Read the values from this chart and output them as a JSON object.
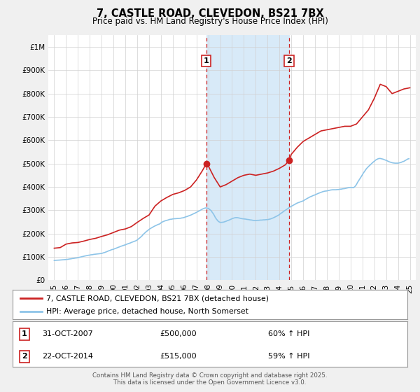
{
  "title": "7, CASTLE ROAD, CLEVEDON, BS21 7BX",
  "subtitle": "Price paid vs. HM Land Registry's House Price Index (HPI)",
  "hpi_color": "#8dc4e8",
  "price_color": "#cc2222",
  "background_color": "#f0f0f0",
  "plot_bg_color": "#ffffff",
  "highlight_bg_color": "#d8eaf8",
  "marker1_date": 2007.83,
  "marker2_date": 2014.81,
  "marker1_label": "31-OCT-2007",
  "marker2_label": "22-OCT-2014",
  "marker1_price": 500000,
  "marker2_price": 515000,
  "marker1_pct": "60% ↑ HPI",
  "marker2_pct": "59% ↑ HPI",
  "marker1_price_str": "£500,000",
  "marker2_price_str": "£515,000",
  "ylim": [
    0,
    1050000
  ],
  "xlim": [
    1994.5,
    2025.5
  ],
  "ylabel_ticks": [
    0,
    100000,
    200000,
    300000,
    400000,
    500000,
    600000,
    700000,
    800000,
    900000,
    1000000
  ],
  "ylabel_labels": [
    "£0",
    "£100K",
    "£200K",
    "£300K",
    "£400K",
    "£500K",
    "£600K",
    "£700K",
    "£800K",
    "£900K",
    "£1M"
  ],
  "xtick_labels": [
    "95",
    "96",
    "97",
    "98",
    "99",
    "00",
    "01",
    "02",
    "03",
    "04",
    "05",
    "06",
    "07",
    "08",
    "09",
    "10",
    "11",
    "12",
    "13",
    "14",
    "15",
    "16",
    "17",
    "18",
    "19",
    "20",
    "21",
    "22",
    "23",
    "24",
    "25"
  ],
  "xticks": [
    1995,
    1996,
    1997,
    1998,
    1999,
    2000,
    2001,
    2002,
    2003,
    2004,
    2005,
    2006,
    2007,
    2008,
    2009,
    2010,
    2011,
    2012,
    2013,
    2014,
    2015,
    2016,
    2017,
    2018,
    2019,
    2020,
    2021,
    2022,
    2023,
    2024,
    2025
  ],
  "legend_line1": "7, CASTLE ROAD, CLEVEDON, BS21 7BX (detached house)",
  "legend_line2": "HPI: Average price, detached house, North Somerset",
  "footer": "Contains HM Land Registry data © Crown copyright and database right 2025.\nThis data is licensed under the Open Government Licence v3.0.",
  "hpi_data": [
    [
      1995.0,
      85000
    ],
    [
      1995.08,
      85500
    ],
    [
      1995.17,
      85800
    ],
    [
      1995.25,
      86000
    ],
    [
      1995.33,
      86200
    ],
    [
      1995.42,
      86500
    ],
    [
      1995.5,
      87000
    ],
    [
      1995.58,
      87200
    ],
    [
      1995.67,
      87500
    ],
    [
      1995.75,
      88000
    ],
    [
      1995.83,
      88300
    ],
    [
      1995.92,
      88600
    ],
    [
      1996.0,
      89000
    ],
    [
      1996.08,
      89500
    ],
    [
      1996.17,
      90000
    ],
    [
      1996.25,
      91000
    ],
    [
      1996.33,
      91500
    ],
    [
      1996.42,
      92000
    ],
    [
      1996.5,
      93000
    ],
    [
      1996.58,
      93500
    ],
    [
      1996.67,
      94000
    ],
    [
      1996.75,
      95000
    ],
    [
      1996.83,
      95500
    ],
    [
      1996.92,
      96000
    ],
    [
      1997.0,
      97000
    ],
    [
      1997.08,
      98000
    ],
    [
      1997.17,
      99000
    ],
    [
      1997.25,
      100000
    ],
    [
      1997.33,
      101000
    ],
    [
      1997.42,
      102000
    ],
    [
      1997.5,
      103000
    ],
    [
      1997.58,
      104000
    ],
    [
      1997.67,
      105000
    ],
    [
      1997.75,
      106000
    ],
    [
      1997.83,
      107000
    ],
    [
      1997.92,
      107500
    ],
    [
      1998.0,
      108000
    ],
    [
      1998.08,
      109000
    ],
    [
      1998.17,
      109500
    ],
    [
      1998.25,
      110000
    ],
    [
      1998.33,
      111000
    ],
    [
      1998.42,
      111500
    ],
    [
      1998.5,
      112000
    ],
    [
      1998.58,
      112500
    ],
    [
      1998.67,
      113000
    ],
    [
      1998.75,
      113000
    ],
    [
      1998.83,
      113500
    ],
    [
      1998.92,
      114000
    ],
    [
      1999.0,
      115000
    ],
    [
      1999.08,
      116500
    ],
    [
      1999.17,
      118000
    ],
    [
      1999.25,
      119000
    ],
    [
      1999.33,
      120500
    ],
    [
      1999.42,
      122000
    ],
    [
      1999.5,
      124000
    ],
    [
      1999.58,
      126000
    ],
    [
      1999.67,
      127500
    ],
    [
      1999.75,
      129000
    ],
    [
      1999.83,
      131000
    ],
    [
      1999.92,
      132000
    ],
    [
      2000.0,
      133000
    ],
    [
      2000.08,
      135000
    ],
    [
      2000.17,
      136500
    ],
    [
      2000.25,
      138000
    ],
    [
      2000.33,
      140000
    ],
    [
      2000.42,
      141500
    ],
    [
      2000.5,
      143000
    ],
    [
      2000.58,
      145000
    ],
    [
      2000.67,
      146500
    ],
    [
      2000.75,
      148000
    ],
    [
      2000.83,
      149500
    ],
    [
      2000.92,
      151000
    ],
    [
      2001.0,
      152000
    ],
    [
      2001.08,
      154000
    ],
    [
      2001.17,
      155500
    ],
    [
      2001.25,
      157000
    ],
    [
      2001.33,
      158500
    ],
    [
      2001.42,
      160000
    ],
    [
      2001.5,
      162000
    ],
    [
      2001.58,
      163500
    ],
    [
      2001.67,
      165000
    ],
    [
      2001.75,
      167000
    ],
    [
      2001.83,
      168500
    ],
    [
      2001.92,
      170000
    ],
    [
      2002.0,
      173000
    ],
    [
      2002.08,
      176500
    ],
    [
      2002.17,
      180000
    ],
    [
      2002.25,
      183000
    ],
    [
      2002.33,
      187000
    ],
    [
      2002.42,
      191000
    ],
    [
      2002.5,
      196000
    ],
    [
      2002.58,
      200000
    ],
    [
      2002.67,
      204000
    ],
    [
      2002.75,
      208000
    ],
    [
      2002.83,
      211000
    ],
    [
      2002.92,
      214500
    ],
    [
      2003.0,
      218000
    ],
    [
      2003.08,
      221000
    ],
    [
      2003.17,
      223500
    ],
    [
      2003.25,
      226000
    ],
    [
      2003.33,
      228500
    ],
    [
      2003.42,
      231000
    ],
    [
      2003.5,
      233000
    ],
    [
      2003.58,
      235000
    ],
    [
      2003.67,
      237000
    ],
    [
      2003.75,
      239000
    ],
    [
      2003.83,
      240500
    ],
    [
      2003.92,
      242000
    ],
    [
      2004.0,
      246000
    ],
    [
      2004.08,
      249000
    ],
    [
      2004.17,
      251000
    ],
    [
      2004.25,
      253000
    ],
    [
      2004.33,
      254500
    ],
    [
      2004.42,
      256000
    ],
    [
      2004.5,
      257000
    ],
    [
      2004.58,
      258000
    ],
    [
      2004.67,
      259500
    ],
    [
      2004.75,
      261000
    ],
    [
      2004.83,
      261500
    ],
    [
      2004.92,
      262000
    ],
    [
      2005.0,
      263000
    ],
    [
      2005.08,
      263500
    ],
    [
      2005.17,
      264000
    ],
    [
      2005.25,
      264000
    ],
    [
      2005.33,
      264500
    ],
    [
      2005.42,
      265000
    ],
    [
      2005.5,
      265000
    ],
    [
      2005.58,
      265500
    ],
    [
      2005.67,
      266000
    ],
    [
      2005.75,
      267000
    ],
    [
      2005.83,
      267500
    ],
    [
      2005.92,
      268500
    ],
    [
      2006.0,
      270000
    ],
    [
      2006.08,
      271500
    ],
    [
      2006.17,
      273000
    ],
    [
      2006.25,
      274000
    ],
    [
      2006.33,
      276000
    ],
    [
      2006.42,
      277500
    ],
    [
      2006.5,
      279000
    ],
    [
      2006.58,
      281000
    ],
    [
      2006.67,
      283000
    ],
    [
      2006.75,
      285000
    ],
    [
      2006.83,
      287000
    ],
    [
      2006.92,
      289000
    ],
    [
      2007.0,
      291000
    ],
    [
      2007.08,
      293500
    ],
    [
      2007.17,
      296000
    ],
    [
      2007.25,
      298000
    ],
    [
      2007.33,
      300000
    ],
    [
      2007.42,
      303000
    ],
    [
      2007.5,
      305000
    ],
    [
      2007.58,
      307000
    ],
    [
      2007.67,
      308500
    ],
    [
      2007.75,
      310000
    ],
    [
      2007.83,
      310000
    ],
    [
      2007.92,
      309000
    ],
    [
      2008.0,
      308000
    ],
    [
      2008.08,
      305000
    ],
    [
      2008.17,
      301000
    ],
    [
      2008.25,
      298000
    ],
    [
      2008.33,
      291000
    ],
    [
      2008.42,
      285000
    ],
    [
      2008.5,
      278000
    ],
    [
      2008.58,
      270000
    ],
    [
      2008.67,
      263000
    ],
    [
      2008.75,
      258000
    ],
    [
      2008.83,
      253000
    ],
    [
      2008.92,
      250000
    ],
    [
      2009.0,
      248000
    ],
    [
      2009.08,
      248000
    ],
    [
      2009.17,
      248500
    ],
    [
      2009.25,
      249000
    ],
    [
      2009.33,
      250000
    ],
    [
      2009.42,
      251500
    ],
    [
      2009.5,
      253000
    ],
    [
      2009.58,
      255000
    ],
    [
      2009.67,
      256500
    ],
    [
      2009.75,
      258000
    ],
    [
      2009.83,
      260000
    ],
    [
      2009.92,
      262000
    ],
    [
      2010.0,
      264000
    ],
    [
      2010.08,
      265500
    ],
    [
      2010.17,
      267000
    ],
    [
      2010.25,
      268000
    ],
    [
      2010.33,
      268500
    ],
    [
      2010.42,
      268500
    ],
    [
      2010.5,
      268000
    ],
    [
      2010.58,
      267000
    ],
    [
      2010.67,
      266000
    ],
    [
      2010.75,
      265000
    ],
    [
      2010.83,
      264000
    ],
    [
      2010.92,
      263500
    ],
    [
      2011.0,
      263000
    ],
    [
      2011.08,
      262500
    ],
    [
      2011.17,
      262000
    ],
    [
      2011.25,
      261000
    ],
    [
      2011.33,
      260500
    ],
    [
      2011.42,
      260000
    ],
    [
      2011.5,
      259000
    ],
    [
      2011.58,
      258500
    ],
    [
      2011.67,
      258000
    ],
    [
      2011.75,
      257000
    ],
    [
      2011.83,
      256500
    ],
    [
      2011.92,
      256000
    ],
    [
      2012.0,
      256000
    ],
    [
      2012.08,
      256500
    ],
    [
      2012.17,
      257000
    ],
    [
      2012.25,
      257000
    ],
    [
      2012.33,
      257500
    ],
    [
      2012.42,
      258000
    ],
    [
      2012.5,
      258000
    ],
    [
      2012.58,
      258500
    ],
    [
      2012.67,
      259000
    ],
    [
      2012.75,
      259000
    ],
    [
      2012.83,
      259500
    ],
    [
      2012.92,
      260000
    ],
    [
      2013.0,
      260000
    ],
    [
      2013.08,
      261000
    ],
    [
      2013.17,
      262000
    ],
    [
      2013.25,
      263000
    ],
    [
      2013.33,
      264500
    ],
    [
      2013.42,
      266500
    ],
    [
      2013.5,
      268000
    ],
    [
      2013.58,
      270000
    ],
    [
      2013.67,
      272000
    ],
    [
      2013.75,
      274000
    ],
    [
      2013.83,
      276500
    ],
    [
      2013.92,
      279000
    ],
    [
      2014.0,
      282000
    ],
    [
      2014.08,
      285500
    ],
    [
      2014.17,
      288500
    ],
    [
      2014.25,
      291000
    ],
    [
      2014.33,
      294500
    ],
    [
      2014.42,
      297500
    ],
    [
      2014.5,
      300000
    ],
    [
      2014.58,
      303000
    ],
    [
      2014.67,
      306000
    ],
    [
      2014.75,
      309000
    ],
    [
      2014.83,
      312000
    ],
    [
      2014.92,
      314500
    ],
    [
      2015.0,
      317000
    ],
    [
      2015.08,
      319500
    ],
    [
      2015.17,
      322000
    ],
    [
      2015.25,
      324000
    ],
    [
      2015.33,
      326500
    ],
    [
      2015.42,
      329000
    ],
    [
      2015.5,
      331000
    ],
    [
      2015.58,
      332500
    ],
    [
      2015.67,
      334500
    ],
    [
      2015.75,
      336000
    ],
    [
      2015.83,
      337500
    ],
    [
      2015.92,
      339000
    ],
    [
      2016.0,
      340000
    ],
    [
      2016.08,
      343000
    ],
    [
      2016.17,
      346000
    ],
    [
      2016.25,
      348000
    ],
    [
      2016.33,
      350500
    ],
    [
      2016.42,
      353000
    ],
    [
      2016.5,
      355000
    ],
    [
      2016.58,
      357500
    ],
    [
      2016.67,
      359000
    ],
    [
      2016.75,
      361000
    ],
    [
      2016.83,
      363000
    ],
    [
      2016.92,
      364500
    ],
    [
      2017.0,
      366000
    ],
    [
      2017.08,
      368000
    ],
    [
      2017.17,
      370000
    ],
    [
      2017.25,
      372000
    ],
    [
      2017.33,
      373500
    ],
    [
      2017.42,
      375500
    ],
    [
      2017.5,
      377000
    ],
    [
      2017.58,
      378500
    ],
    [
      2017.67,
      380000
    ],
    [
      2017.75,
      381000
    ],
    [
      2017.83,
      382000
    ],
    [
      2017.92,
      382500
    ],
    [
      2018.0,
      383000
    ],
    [
      2018.08,
      384000
    ],
    [
      2018.17,
      385000
    ],
    [
      2018.25,
      386000
    ],
    [
      2018.33,
      387000
    ],
    [
      2018.42,
      387500
    ],
    [
      2018.5,
      388000
    ],
    [
      2018.58,
      388000
    ],
    [
      2018.67,
      388000
    ],
    [
      2018.75,
      388000
    ],
    [
      2018.83,
      388500
    ],
    [
      2018.92,
      389000
    ],
    [
      2019.0,
      389000
    ],
    [
      2019.08,
      390000
    ],
    [
      2019.17,
      390500
    ],
    [
      2019.25,
      391000
    ],
    [
      2019.33,
      392000
    ],
    [
      2019.42,
      392500
    ],
    [
      2019.5,
      393000
    ],
    [
      2019.58,
      394000
    ],
    [
      2019.67,
      395000
    ],
    [
      2019.75,
      396000
    ],
    [
      2019.83,
      397000
    ],
    [
      2019.92,
      397500
    ],
    [
      2020.0,
      398000
    ],
    [
      2020.08,
      398000
    ],
    [
      2020.17,
      397500
    ],
    [
      2020.25,
      397000
    ],
    [
      2020.33,
      400000
    ],
    [
      2020.42,
      405000
    ],
    [
      2020.5,
      411000
    ],
    [
      2020.58,
      419000
    ],
    [
      2020.67,
      426000
    ],
    [
      2020.75,
      432000
    ],
    [
      2020.83,
      439000
    ],
    [
      2020.92,
      446000
    ],
    [
      2021.0,
      453000
    ],
    [
      2021.08,
      460000
    ],
    [
      2021.17,
      466000
    ],
    [
      2021.25,
      472000
    ],
    [
      2021.33,
      478000
    ],
    [
      2021.42,
      483000
    ],
    [
      2021.5,
      487000
    ],
    [
      2021.58,
      491000
    ],
    [
      2021.67,
      495000
    ],
    [
      2021.75,
      499000
    ],
    [
      2021.83,
      503000
    ],
    [
      2021.92,
      507000
    ],
    [
      2022.0,
      510000
    ],
    [
      2022.08,
      514000
    ],
    [
      2022.17,
      517000
    ],
    [
      2022.25,
      519000
    ],
    [
      2022.33,
      521000
    ],
    [
      2022.42,
      522000
    ],
    [
      2022.5,
      522000
    ],
    [
      2022.58,
      521000
    ],
    [
      2022.67,
      520000
    ],
    [
      2022.75,
      519000
    ],
    [
      2022.83,
      517000
    ],
    [
      2022.92,
      515500
    ],
    [
      2023.0,
      514000
    ],
    [
      2023.08,
      512000
    ],
    [
      2023.17,
      510000
    ],
    [
      2023.25,
      508000
    ],
    [
      2023.33,
      506500
    ],
    [
      2023.42,
      505000
    ],
    [
      2023.5,
      504000
    ],
    [
      2023.58,
      503000
    ],
    [
      2023.67,
      502500
    ],
    [
      2023.75,
      502000
    ],
    [
      2023.83,
      502000
    ],
    [
      2023.92,
      502000
    ],
    [
      2024.0,
      502000
    ],
    [
      2024.08,
      503000
    ],
    [
      2024.17,
      504000
    ],
    [
      2024.25,
      505000
    ],
    [
      2024.33,
      507000
    ],
    [
      2024.42,
      508500
    ],
    [
      2024.5,
      510000
    ],
    [
      2024.58,
      512500
    ],
    [
      2024.67,
      515500
    ],
    [
      2024.75,
      518000
    ],
    [
      2024.83,
      520000
    ],
    [
      2024.92,
      521000
    ]
  ],
  "price_data": [
    [
      1995.0,
      137500
    ],
    [
      1995.5,
      140000
    ],
    [
      1996.0,
      155000
    ],
    [
      1996.5,
      160000
    ],
    [
      1997.0,
      162000
    ],
    [
      1997.5,
      168000
    ],
    [
      1998.0,
      175000
    ],
    [
      1998.5,
      180000
    ],
    [
      1999.0,
      188000
    ],
    [
      1999.5,
      195000
    ],
    [
      2000.0,
      205000
    ],
    [
      2000.5,
      215000
    ],
    [
      2001.0,
      220000
    ],
    [
      2001.5,
      230000
    ],
    [
      2002.0,
      248000
    ],
    [
      2002.5,
      265000
    ],
    [
      2003.0,
      280000
    ],
    [
      2003.5,
      318000
    ],
    [
      2004.0,
      340000
    ],
    [
      2004.5,
      355000
    ],
    [
      2005.0,
      368000
    ],
    [
      2005.5,
      375000
    ],
    [
      2006.0,
      385000
    ],
    [
      2006.5,
      400000
    ],
    [
      2007.0,
      430000
    ],
    [
      2007.5,
      470000
    ],
    [
      2007.83,
      500000
    ],
    [
      2008.0,
      490000
    ],
    [
      2008.5,
      440000
    ],
    [
      2009.0,
      400000
    ],
    [
      2009.5,
      410000
    ],
    [
      2010.0,
      425000
    ],
    [
      2010.5,
      440000
    ],
    [
      2011.0,
      450000
    ],
    [
      2011.5,
      455000
    ],
    [
      2012.0,
      450000
    ],
    [
      2012.5,
      455000
    ],
    [
      2013.0,
      460000
    ],
    [
      2013.5,
      468000
    ],
    [
      2014.0,
      480000
    ],
    [
      2014.5,
      495000
    ],
    [
      2014.81,
      515000
    ],
    [
      2015.0,
      540000
    ],
    [
      2015.5,
      570000
    ],
    [
      2016.0,
      595000
    ],
    [
      2016.5,
      610000
    ],
    [
      2017.0,
      625000
    ],
    [
      2017.5,
      640000
    ],
    [
      2018.0,
      645000
    ],
    [
      2018.5,
      650000
    ],
    [
      2019.0,
      655000
    ],
    [
      2019.5,
      660000
    ],
    [
      2020.0,
      660000
    ],
    [
      2020.5,
      670000
    ],
    [
      2021.0,
      700000
    ],
    [
      2021.5,
      730000
    ],
    [
      2022.0,
      780000
    ],
    [
      2022.5,
      840000
    ],
    [
      2023.0,
      830000
    ],
    [
      2023.5,
      800000
    ],
    [
      2024.0,
      810000
    ],
    [
      2024.5,
      820000
    ],
    [
      2025.0,
      825000
    ]
  ]
}
